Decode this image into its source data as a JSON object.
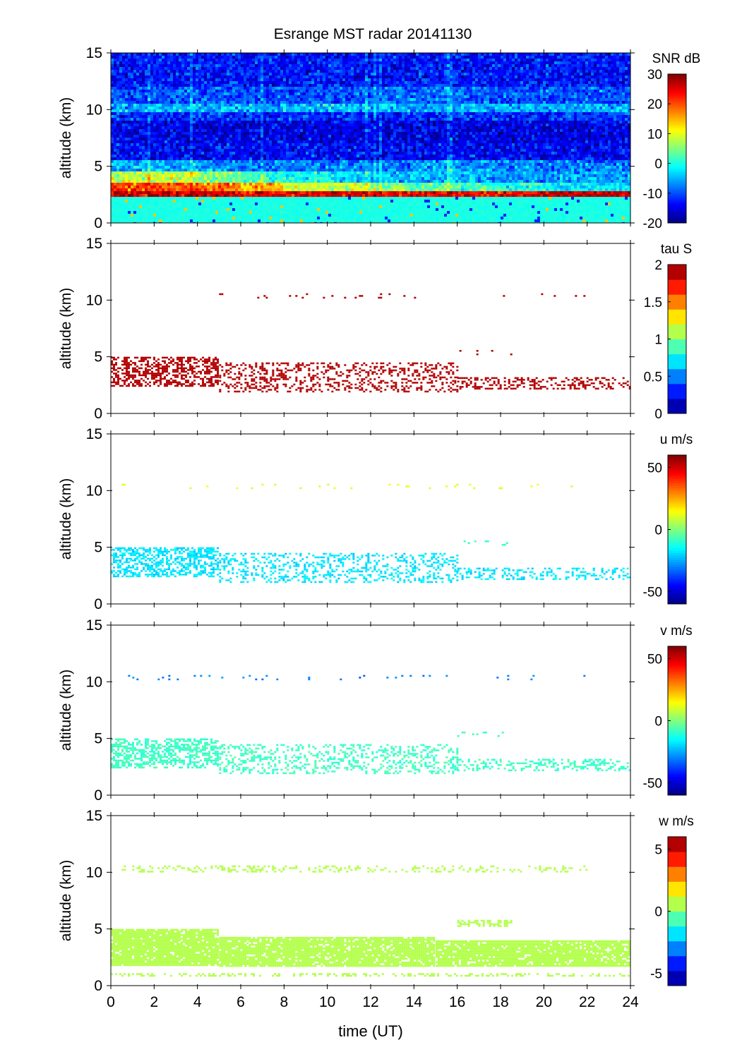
{
  "chart_data": {
    "type": "heatmap",
    "title": "Esrange MST radar 20141130",
    "xlabel": "time (UT)",
    "xlim": [
      0,
      24
    ],
    "xticks": [
      0,
      2,
      4,
      6,
      8,
      10,
      12,
      14,
      16,
      18,
      20,
      22,
      24
    ],
    "ylim": [
      0,
      15
    ],
    "yticks": [
      0,
      5,
      10,
      15
    ],
    "panels": [
      {
        "ylabel": "altitude (km)",
        "colorbar_label": "SNR dB",
        "clim": [
          -20,
          30
        ],
        "cticks": [
          -20,
          -10,
          0,
          10,
          20,
          30
        ],
        "colormap": "jet",
        "discrete_levels": 0,
        "kind": "grid",
        "time_bins_h": 2,
        "altitude_edges_km": [
          0,
          2.3,
          2.8,
          3.5,
          4.5,
          5.5,
          7,
          9,
          9.8,
          10.6,
          12,
          15
        ],
        "values": [
          [
            0,
            0,
            0,
            0,
            0,
            0,
            0,
            0,
            0,
            0,
            0,
            0
          ],
          [
            26,
            27,
            26,
            25,
            25,
            25,
            24,
            24,
            24,
            25,
            26,
            27
          ],
          [
            20,
            20,
            18,
            15,
            10,
            8,
            5,
            3,
            2,
            0,
            -2,
            -3
          ],
          [
            8,
            8,
            5,
            2,
            0,
            -3,
            -5,
            -5,
            -5,
            -6,
            -6,
            -6
          ],
          [
            -5,
            -5,
            -6,
            -8,
            -8,
            -8,
            -8,
            -5,
            -6,
            -8,
            -8,
            -8
          ],
          [
            -14,
            -14,
            -14,
            -14,
            -13,
            -14,
            -14,
            -14,
            -14,
            -14,
            -14,
            -14
          ],
          [
            -15,
            -15,
            -15,
            -15,
            -15,
            -15,
            -15,
            -15,
            -15,
            -15,
            -15,
            -15
          ],
          [
            -12,
            -12,
            -11,
            -12,
            -12,
            -12,
            -12,
            -12,
            -12,
            -12,
            -12,
            -12
          ],
          [
            -5,
            -5,
            -5,
            -6,
            -5,
            -4,
            -5,
            -6,
            -5,
            -5,
            -5,
            -5
          ],
          [
            -10,
            -10,
            -10,
            -10,
            -10,
            -10,
            -9,
            -9,
            -10,
            -10,
            -10,
            -10
          ],
          [
            -13,
            -13,
            -13,
            -13,
            -13,
            -13,
            -13,
            -13,
            -13,
            -13,
            -13,
            -13
          ]
        ]
      },
      {
        "ylabel": "altitude (km)",
        "colorbar_label": "tau S",
        "clim": [
          0,
          2
        ],
        "cticks": [
          0,
          0.5,
          1,
          1.5,
          2
        ],
        "colormap": "jet",
        "discrete_levels": 10,
        "kind": "echo_layers",
        "layers": [
          {
            "t": [
              0,
              5
            ],
            "alt": [
              2.5,
              5
            ],
            "density": 0.55,
            "value": 2
          },
          {
            "t": [
              5,
              16
            ],
            "alt": [
              2,
              4.5
            ],
            "density": 0.3,
            "value": 2
          },
          {
            "t": [
              16,
              24
            ],
            "alt": [
              2.2,
              3.2
            ],
            "density": 0.35,
            "value": 2
          },
          {
            "t": [
              0.5,
              22
            ],
            "alt": [
              10.2,
              10.6
            ],
            "density": 0.04,
            "value": 2
          },
          {
            "t": [
              16,
              18.5
            ],
            "alt": [
              5.2,
              5.6
            ],
            "density": 0.08,
            "value": 2
          }
        ]
      },
      {
        "ylabel": "altitude (km)",
        "colorbar_label": "u m/s",
        "clim": [
          -60,
          60
        ],
        "cticks": [
          -50,
          0,
          50
        ],
        "colormap": "jet",
        "discrete_levels": 0,
        "kind": "echo_layers",
        "layers": [
          {
            "t": [
              0,
              5
            ],
            "alt": [
              2.5,
              5
            ],
            "density": 0.55,
            "value": -18
          },
          {
            "t": [
              5,
              16
            ],
            "alt": [
              2,
              4.5
            ],
            "density": 0.3,
            "value": -18
          },
          {
            "t": [
              16,
              24
            ],
            "alt": [
              2.2,
              3.2
            ],
            "density": 0.35,
            "value": -18
          },
          {
            "t": [
              0.5,
              22
            ],
            "alt": [
              10.2,
              10.6
            ],
            "density": 0.04,
            "value": 12
          },
          {
            "t": [
              16,
              18.5
            ],
            "alt": [
              5.2,
              5.6
            ],
            "density": 0.08,
            "value": -10
          }
        ]
      },
      {
        "ylabel": "altitude (km)",
        "colorbar_label": "v m/s",
        "clim": [
          -60,
          60
        ],
        "cticks": [
          -50,
          0,
          50
        ],
        "colormap": "jet",
        "discrete_levels": 0,
        "kind": "echo_layers",
        "layers": [
          {
            "t": [
              0,
              5
            ],
            "alt": [
              2.5,
              5
            ],
            "density": 0.55,
            "value": -8
          },
          {
            "t": [
              5,
              16
            ],
            "alt": [
              2,
              4.5
            ],
            "density": 0.3,
            "value": -8
          },
          {
            "t": [
              16,
              24
            ],
            "alt": [
              2.2,
              3.2
            ],
            "density": 0.35,
            "value": -8
          },
          {
            "t": [
              0.5,
              22
            ],
            "alt": [
              10.2,
              10.6
            ],
            "density": 0.04,
            "value": -30
          },
          {
            "t": [
              16,
              18.5
            ],
            "alt": [
              5.2,
              5.6
            ],
            "density": 0.08,
            "value": -8
          }
        ]
      },
      {
        "ylabel": "altitude (km)",
        "colorbar_label": "w m/s",
        "clim": [
          -6,
          6
        ],
        "cticks": [
          -5,
          0,
          5
        ],
        "colormap": "jet",
        "discrete_levels": 10,
        "kind": "echo_layers",
        "layers": [
          {
            "t": [
              0,
              5
            ],
            "alt": [
              1.8,
              5
            ],
            "density": 0.92,
            "value": 0.5
          },
          {
            "t": [
              5,
              15
            ],
            "alt": [
              1.8,
              4.3
            ],
            "density": 0.9,
            "value": 0.5
          },
          {
            "t": [
              15,
              24
            ],
            "alt": [
              1.8,
              4
            ],
            "density": 0.9,
            "value": 0.5
          },
          {
            "t": [
              16,
              18.5
            ],
            "alt": [
              5.3,
              5.8
            ],
            "density": 0.5,
            "value": 0.5
          },
          {
            "t": [
              0.5,
              22
            ],
            "alt": [
              10.1,
              10.6
            ],
            "density": 0.25,
            "value": 0.5
          },
          {
            "t": [
              0,
              24
            ],
            "alt": [
              0.8,
              1.1
            ],
            "density": 0.35,
            "value": 0.5
          }
        ]
      }
    ]
  }
}
